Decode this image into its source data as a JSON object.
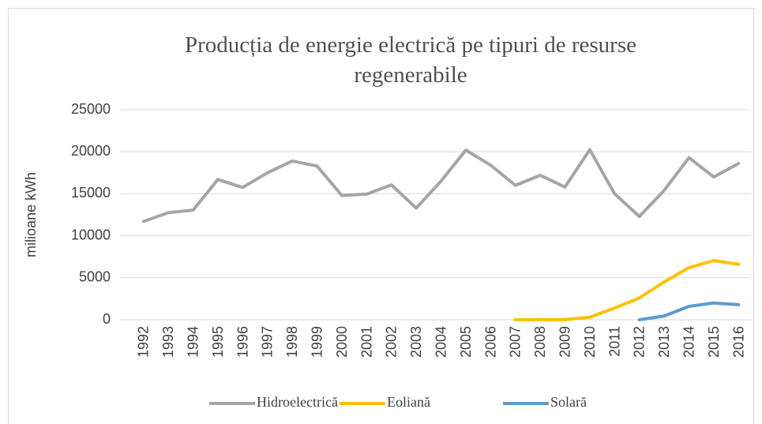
{
  "chart_data": {
    "type": "line",
    "title": "Producția de energie electrică pe tipuri de resurse regenerabile",
    "y_label": "milioane kWh",
    "categories": [
      "1992",
      "1993",
      "1994",
      "1995",
      "1996",
      "1997",
      "1998",
      "1999",
      "2000",
      "2001",
      "2002",
      "2003",
      "2004",
      "2005",
      "2006",
      "2007",
      "2008",
      "2009",
      "2010",
      "2011",
      "2012",
      "2013",
      "2014",
      "2015",
      "2016"
    ],
    "series": [
      {
        "name": "Hidroelectrică",
        "color": "#a5a5a5",
        "values": [
          11700,
          12750,
          13050,
          16700,
          15750,
          17500,
          18900,
          18300,
          14800,
          14950,
          16050,
          13300,
          16500,
          20200,
          18400,
          16000,
          17200,
          15800,
          20250,
          15000,
          12300,
          15400,
          19300,
          17000,
          18600
        ]
      },
      {
        "name": "Eoliană",
        "color": "#ffc000",
        "values": [
          null,
          null,
          null,
          null,
          null,
          null,
          null,
          null,
          null,
          null,
          null,
          null,
          null,
          null,
          null,
          0,
          10,
          10,
          300,
          1400,
          2600,
          4500,
          6200,
          7050,
          6600
        ]
      },
      {
        "name": "Solară",
        "color": "#5b9bd5",
        "values": [
          null,
          null,
          null,
          null,
          null,
          null,
          null,
          null,
          null,
          null,
          null,
          null,
          null,
          null,
          null,
          null,
          null,
          null,
          null,
          null,
          0,
          450,
          1600,
          2000,
          1800
        ]
      }
    ],
    "ylim": [
      0,
      25000
    ],
    "yticks": [
      0,
      5000,
      10000,
      15000,
      20000,
      25000
    ],
    "grid": true,
    "legend": "bottom"
  }
}
